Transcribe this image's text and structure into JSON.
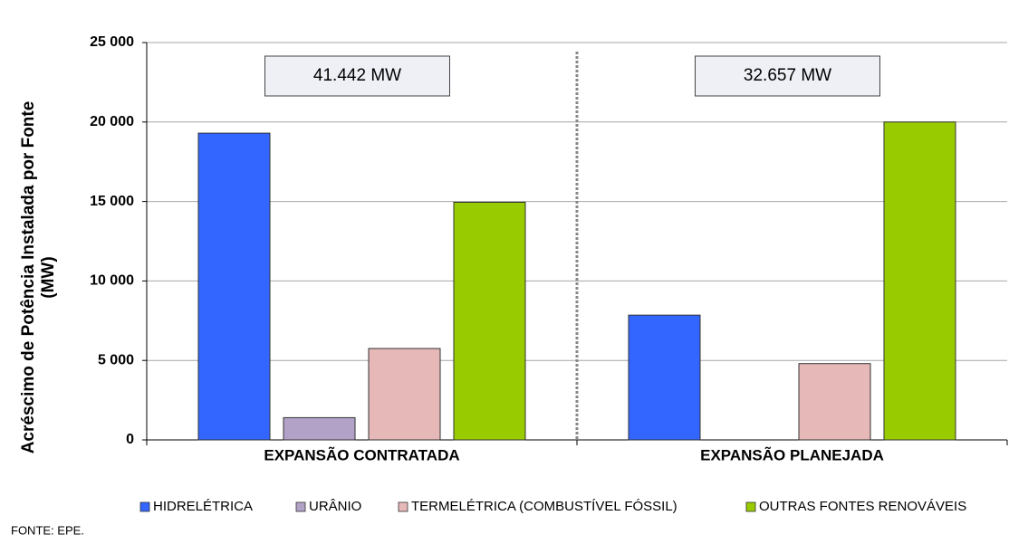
{
  "chart_data": {
    "type": "bar",
    "y_label": [
      "Acréscimo de Potência Instalada  por Fonte",
      "(MW)"
    ],
    "categories": [
      "EXPANSÃO CONTRATADA",
      "EXPANSÃO PLANEJADA"
    ],
    "series": [
      {
        "name": "HIDRELÉTRICA",
        "color": "#3366ff",
        "values": [
          19300,
          7850
        ]
      },
      {
        "name": "URÂNIO",
        "color": "#b3a2c7",
        "values": [
          1400,
          0
        ]
      },
      {
        "name": "TERMELÉTRICA (COMBUSTÍVEL FÓSSIL)",
        "color": "#e6b9b8",
        "values": [
          5750,
          4800
        ]
      },
      {
        "name": "OUTRAS FONTES RENOVÁVEIS",
        "color": "#99cc00",
        "values": [
          14950,
          20000
        ]
      }
    ],
    "annotations": [
      "41.442 MW",
      "32.657 MW"
    ],
    "ylim": [
      0,
      25000
    ],
    "yticks": [
      0,
      {
        "value": 5000,
        "label": "5 000"
      },
      {
        "value": 10000,
        "label": "10 000"
      },
      {
        "value": 15000,
        "label": "15 000"
      },
      {
        "value": 20000,
        "label": "20 000"
      },
      {
        "value": 25000,
        "label": "25 000"
      }
    ],
    "grid": true,
    "legend_position": "bottom",
    "source": "FONTE:  EPE."
  }
}
